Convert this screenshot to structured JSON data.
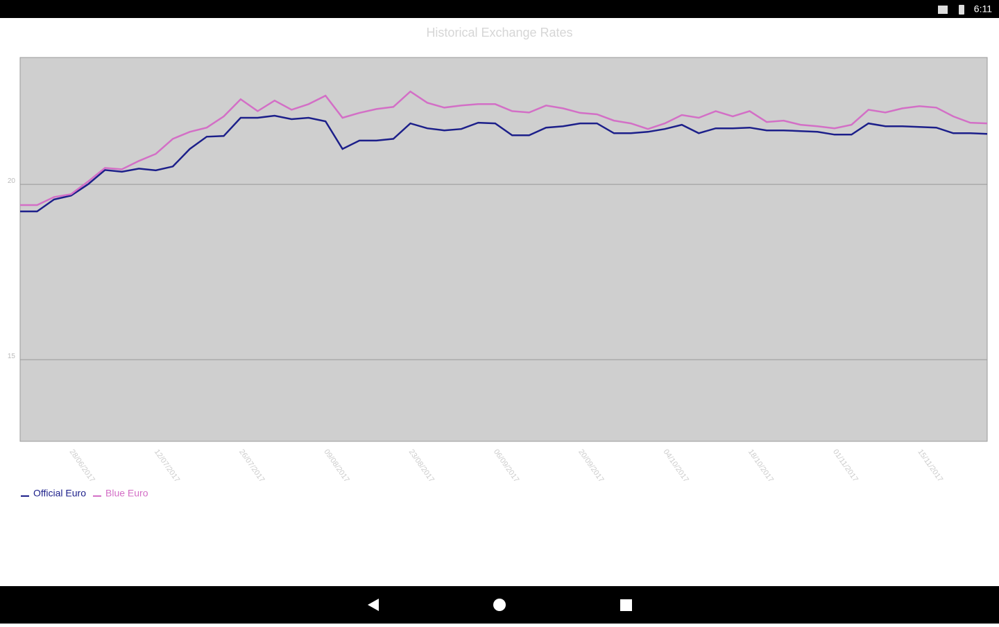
{
  "status_bar": {
    "time": "6:11"
  },
  "chart_data": {
    "type": "line",
    "title": "Historical Exchange Rates",
    "categories": [
      null,
      null,
      null,
      "28/06/2017",
      null,
      null,
      null,
      null,
      "12/07/2017",
      null,
      null,
      null,
      null,
      "26/07/2017",
      null,
      null,
      null,
      null,
      "09/08/2017",
      null,
      null,
      null,
      null,
      "23/08/2017",
      null,
      null,
      null,
      null,
      "06/09/2017",
      null,
      null,
      null,
      null,
      "20/09/2017",
      null,
      null,
      null,
      null,
      "04/10/2017",
      null,
      null,
      null,
      null,
      "18/10/2017",
      null,
      null,
      null,
      null,
      "01/11/2017",
      null,
      null,
      null,
      null,
      "15/11/2017",
      null,
      null,
      null,
      null
    ],
    "series": [
      {
        "name": "Official Euro",
        "color": "#1c1f8a",
        "values": [
          19.23,
          19.23,
          19.57,
          19.68,
          20.0,
          20.41,
          20.36,
          20.45,
          20.4,
          20.51,
          21.01,
          21.36,
          21.38,
          21.9,
          21.9,
          21.96,
          21.86,
          21.9,
          21.8,
          21.01,
          21.25,
          21.25,
          21.3,
          21.74,
          21.6,
          21.54,
          21.58,
          21.76,
          21.74,
          21.4,
          21.4,
          21.62,
          21.66,
          21.74,
          21.74,
          21.46,
          21.46,
          21.5,
          21.58,
          21.7,
          21.46,
          21.6,
          21.6,
          21.62,
          21.54,
          21.54,
          21.52,
          21.5,
          21.42,
          21.42,
          21.74,
          21.66,
          21.66,
          21.64,
          21.62,
          21.46,
          21.46,
          21.44
        ]
      },
      {
        "name": "Blue Euro",
        "color": "#d36fc6",
        "values": [
          19.41,
          19.41,
          19.64,
          19.72,
          20.08,
          20.47,
          20.43,
          20.67,
          20.87,
          21.3,
          21.5,
          21.62,
          21.94,
          22.43,
          22.09,
          22.39,
          22.13,
          22.29,
          22.53,
          21.9,
          22.04,
          22.15,
          22.21,
          22.65,
          22.33,
          22.19,
          22.25,
          22.29,
          22.29,
          22.09,
          22.05,
          22.25,
          22.17,
          22.04,
          22.0,
          21.82,
          21.74,
          21.58,
          21.74,
          21.98,
          21.9,
          22.09,
          21.94,
          22.09,
          21.78,
          21.82,
          21.7,
          21.66,
          21.6,
          21.7,
          22.13,
          22.05,
          22.17,
          22.23,
          22.19,
          21.94,
          21.76,
          21.74
        ]
      }
    ],
    "ylim": [
      12.67,
      23.62
    ],
    "yticks": [
      15,
      20
    ],
    "grid": true,
    "legend": "bottom-left"
  }
}
